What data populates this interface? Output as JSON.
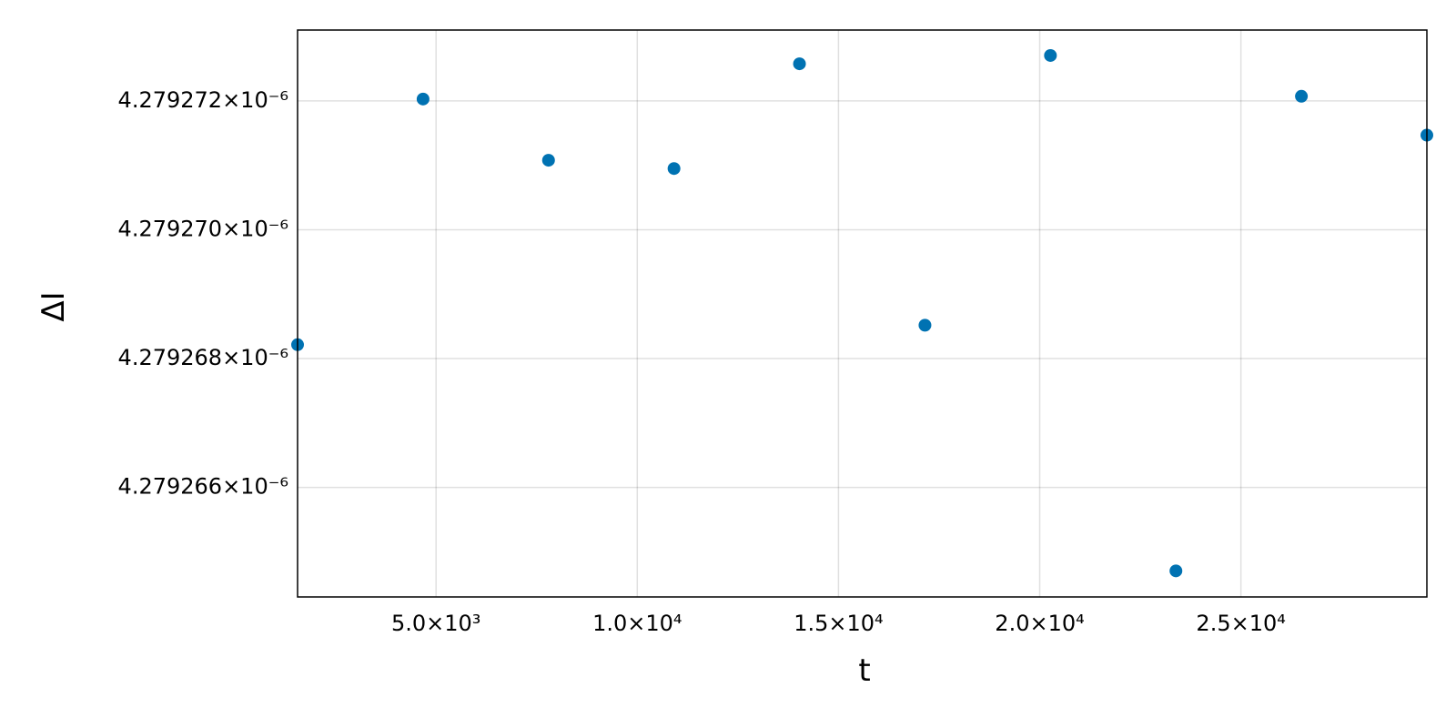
{
  "chart_data": {
    "type": "scatter",
    "x_label": "t",
    "y_label": "ΔI",
    "x": [
      1559,
      4677,
      7795,
      10913,
      14031,
      17149,
      20267,
      23385,
      26503,
      29621
    ],
    "series": [
      {
        "color": "#0072b2",
        "values": [
          4.279268216e-06,
          4.279272029e-06,
          4.279271079e-06,
          4.27927095e-06,
          4.279272576e-06,
          4.279268518e-06,
          4.279272705e-06,
          4.279264705e-06,
          4.279272072e-06,
          4.279271468e-06
        ]
      }
    ],
    "xlim": [
      1559,
      29621
    ],
    "ylim": [
      4.2792643e-06,
      4.2792731e-06
    ],
    "xticks": [
      {
        "value": 5000,
        "label": "5.0×10³"
      },
      {
        "value": 10000,
        "label": "1.0×10⁴"
      },
      {
        "value": 15000,
        "label": "1.5×10⁴"
      },
      {
        "value": 20000,
        "label": "2.0×10⁴"
      },
      {
        "value": 25000,
        "label": "2.5×10⁴"
      }
    ],
    "yticks": [
      {
        "value": 4.279266e-06,
        "label": "4.279266×10⁻⁶"
      },
      {
        "value": 4.279268e-06,
        "label": "4.279268×10⁻⁶"
      },
      {
        "value": 4.27927e-06,
        "label": "4.279270×10⁻⁶"
      },
      {
        "value": 4.279272e-06,
        "label": "4.279272×10⁻⁶"
      }
    ],
    "grid": true
  }
}
